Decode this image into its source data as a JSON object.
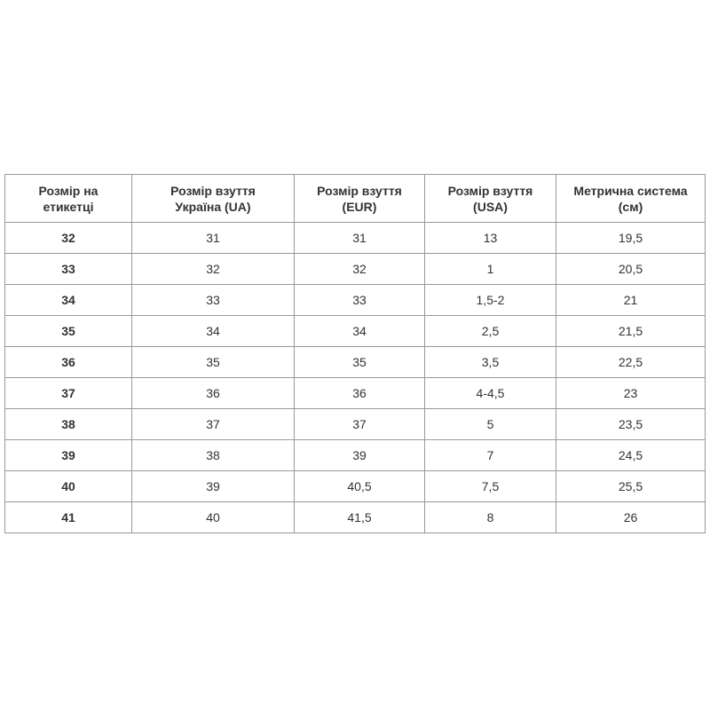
{
  "table": {
    "headers": [
      "Розмір на етикетці",
      "Розмір взуття Україна (UA)",
      "Розмір взуття (EUR)",
      "Розмір взуття (USA)",
      "Метрична система (см)"
    ],
    "header_lines": [
      [
        "Розмір на",
        "етикетці"
      ],
      [
        "Розмір взуття",
        "Україна (UA)"
      ],
      [
        "Розмір взуття",
        "(EUR)"
      ],
      [
        "Розмір взуття",
        "(USA)"
      ],
      [
        "Метрична система",
        "(см)"
      ]
    ],
    "rows": [
      [
        "32",
        "31",
        "31",
        "13",
        "19,5"
      ],
      [
        "33",
        "32",
        "32",
        "1",
        "20,5"
      ],
      [
        "34",
        "33",
        "33",
        "1,5-2",
        "21"
      ],
      [
        "35",
        "34",
        "34",
        "2,5",
        "21,5"
      ],
      [
        "36",
        "35",
        "35",
        "3,5",
        "22,5"
      ],
      [
        "37",
        "36",
        "36",
        "4-4,5",
        "23"
      ],
      [
        "38",
        "37",
        "37",
        "5",
        "23,5"
      ],
      [
        "39",
        "38",
        "39",
        "7",
        "24,5"
      ],
      [
        "40",
        "39",
        "40,5",
        "7,5",
        "25,5"
      ],
      [
        "41",
        "40",
        "41,5",
        "8",
        "26"
      ]
    ]
  }
}
